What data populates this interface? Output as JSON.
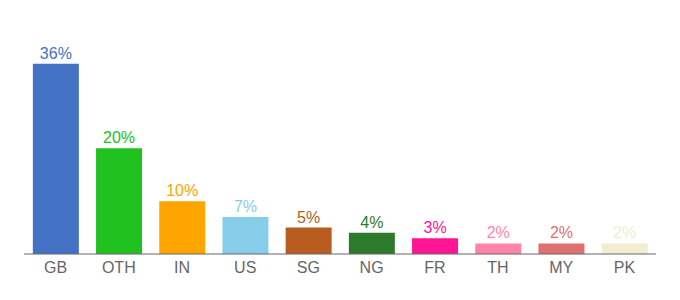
{
  "chart_data": {
    "type": "bar",
    "categories": [
      "GB",
      "OTH",
      "IN",
      "US",
      "SG",
      "NG",
      "FR",
      "TH",
      "MY",
      "PK"
    ],
    "values": [
      36,
      20,
      10,
      7,
      5,
      4,
      3,
      2,
      2,
      2
    ],
    "value_labels": [
      "36%",
      "20%",
      "10%",
      "7%",
      "5%",
      "4%",
      "3%",
      "2%",
      "2%",
      "2%"
    ],
    "colors": [
      "#4472C4",
      "#21C120",
      "#FFA500",
      "#87CEEB",
      "#B85C20",
      "#2D7A2D",
      "#FF1493",
      "#FF85A8",
      "#E07070",
      "#F0EDD0"
    ],
    "ylim": [
      0,
      42
    ],
    "data_labels": true,
    "tick_labels": "x",
    "grid": false
  }
}
